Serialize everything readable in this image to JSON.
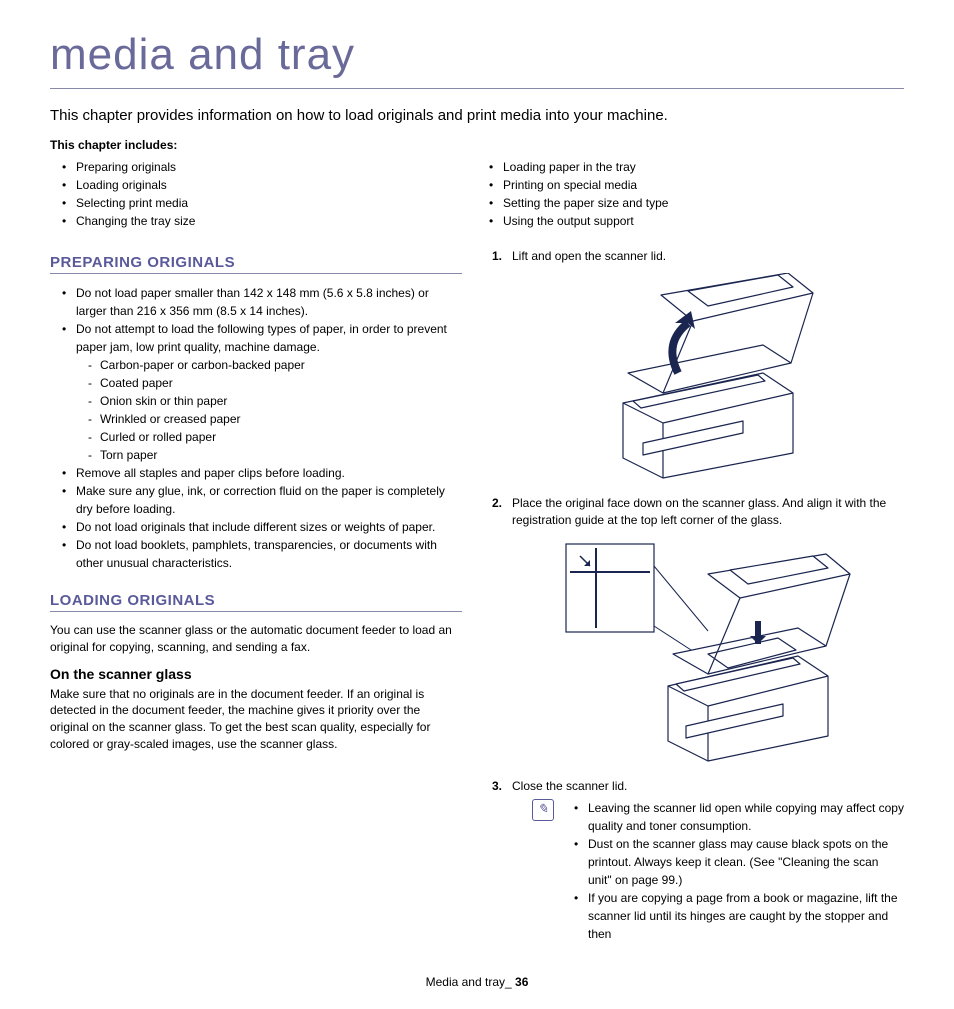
{
  "colors": {
    "heading": "#5a5a9a",
    "rule": "#8888aa",
    "text": "#000000",
    "background": "#ffffff",
    "printer_line": "#1a2550",
    "printer_fill": "#ffffff"
  },
  "title": "media and tray",
  "intro": "This chapter provides information on how to load originals and print media into your machine.",
  "includes_label": "This chapter includes:",
  "includes_left": [
    "Preparing originals",
    "Loading originals",
    "Selecting print media",
    "Changing the tray size"
  ],
  "includes_right": [
    "Loading paper in the tray",
    "Printing on special media",
    "Setting the paper size and type",
    "Using the output support"
  ],
  "left": {
    "preparing_heading": "PREPARING ORIGINALS",
    "preparing_bullets_a": [
      "Do not load paper smaller than 142 x 148 mm (5.6 x 5.8 inches) or larger than 216 x 356 mm (8.5 x 14 inches).",
      "Do not attempt to load the following types of paper, in order to prevent paper jam, low print quality, machine damage."
    ],
    "preparing_subitems": [
      "Carbon-paper or carbon-backed paper",
      "Coated paper",
      "Onion skin or thin paper",
      "Wrinkled or creased paper",
      "Curled or rolled paper",
      "Torn paper"
    ],
    "preparing_bullets_b": [
      "Remove all staples and paper clips before loading.",
      "Make sure any glue, ink, or correction fluid on the paper is completely dry before loading.",
      "Do not load originals that include different sizes or weights of paper.",
      "Do not load booklets, pamphlets, transparencies, or documents with other unusual characteristics."
    ],
    "loading_heading": "LOADING ORIGINALS",
    "loading_intro": "You can use the scanner glass or the automatic document feeder to load an original for copying, scanning, and sending a fax.",
    "scanner_sub": "On the scanner glass",
    "scanner_text": "Make sure that no originals are in the document feeder. If an original is detected in the document feeder, the machine gives it priority over the original on the scanner glass. To get the best scan quality, especially for colored or gray-scaled images, use the scanner glass."
  },
  "right": {
    "step1": "Lift and open the scanner lid.",
    "step2": "Place the original face down on the scanner glass. And align it with the registration guide at the top left corner of the glass.",
    "step3": "Close the scanner lid.",
    "note_icon": "✎",
    "notes": [
      "Leaving the scanner lid open while copying may affect copy quality and toner consumption.",
      "Dust on the scanner glass may cause black spots on the printout. Always keep it clean. (See \"Cleaning the scan unit\" on page 99.)",
      "If you are copying a page from a book or magazine, lift the scanner lid until its hinges are caught by the stopper and then"
    ]
  },
  "footer": {
    "label": "Media and tray_",
    "page": "36"
  }
}
